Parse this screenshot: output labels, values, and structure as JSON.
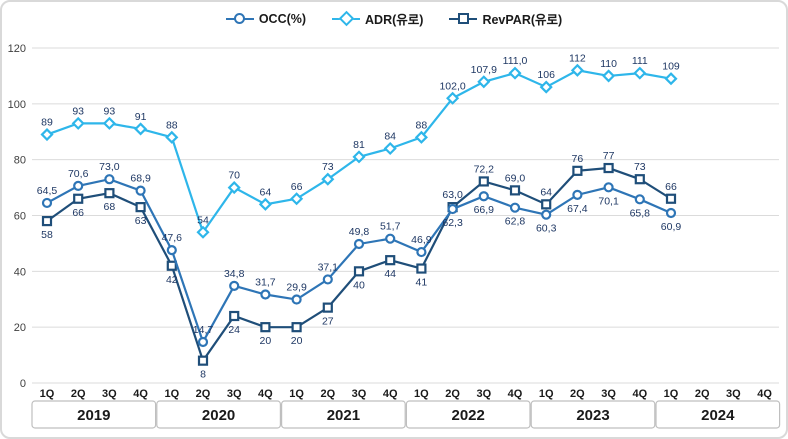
{
  "chart_data": {
    "type": "line",
    "title": "",
    "ylim": [
      0,
      120
    ],
    "ytick_step": 20,
    "grid": true,
    "legend_position": "top",
    "quarters": [
      "1Q",
      "2Q",
      "3Q",
      "4Q",
      "1Q",
      "2Q",
      "3Q",
      "4Q",
      "1Q",
      "2Q",
      "3Q",
      "4Q",
      "1Q",
      "2Q",
      "3Q",
      "4Q",
      "1Q",
      "2Q",
      "3Q",
      "4Q",
      "1Q",
      "2Q",
      "3Q",
      "4Q"
    ],
    "years": [
      "2019",
      "2020",
      "2021",
      "2022",
      "2023",
      "2024"
    ],
    "series": [
      {
        "name": "OCC(%)",
        "marker": "circle",
        "color": "#2E75B6",
        "values": [
          64.5,
          70.6,
          73.0,
          68.9,
          47.6,
          14.7,
          34.8,
          31.7,
          29.9,
          37.1,
          49.8,
          51.7,
          46.9,
          62.3,
          66.9,
          62.8,
          60.3,
          67.4,
          70.1,
          65.8,
          60.9
        ],
        "labels": [
          "64,5",
          "70,6",
          "73,0",
          "68,9",
          "47,6",
          "14,7",
          "34,8",
          "31,7",
          "29,9",
          "37,1",
          "49,8",
          "51,7",
          "46,9",
          "62,3",
          "66,9",
          "62,8",
          "60,3",
          "67,4",
          "70,1",
          "65,8",
          "60,9"
        ],
        "label_side": [
          "above",
          "above",
          "above",
          "above",
          "above",
          "above",
          "above",
          "above",
          "above",
          "above",
          "above",
          "above",
          "above",
          "below",
          "below",
          "below",
          "below",
          "below",
          "below",
          "below",
          "below"
        ]
      },
      {
        "name": "ADR(유로)",
        "marker": "diamond",
        "color": "#2EB6EA",
        "values": [
          89,
          93,
          93,
          91,
          88,
          54,
          70,
          64,
          66,
          73,
          81,
          84,
          88,
          102,
          107.9,
          111,
          106,
          112,
          110,
          111,
          109
        ],
        "labels": [
          "89",
          "93",
          "93",
          "91",
          "88",
          "54",
          "70",
          "64",
          "66",
          "73",
          "81",
          "84",
          "88",
          "102,0",
          "107,9",
          "111,0",
          "106",
          "112",
          "110",
          "111",
          "109"
        ],
        "label_side": [
          "above",
          "above",
          "above",
          "above",
          "above",
          "above",
          "above",
          "above",
          "above",
          "above",
          "above",
          "above",
          "above",
          "above",
          "above",
          "above",
          "above",
          "above",
          "above",
          "above",
          "above"
        ]
      },
      {
        "name": "RevPAR(유로)",
        "marker": "square",
        "color": "#1F4E79",
        "values": [
          58,
          66,
          68,
          63,
          42,
          8,
          24,
          20,
          20,
          27,
          40,
          44,
          41,
          63,
          72.2,
          69,
          64,
          76,
          77,
          73,
          66
        ],
        "labels": [
          "58",
          "66",
          "68",
          "63",
          "42",
          "8",
          "24",
          "20",
          "20",
          "27",
          "40",
          "44",
          "41",
          "63,0",
          "72,2",
          "69,0",
          "64",
          "76",
          "77",
          "73",
          "66"
        ],
        "label_side": [
          "below",
          "below",
          "below",
          "below",
          "below",
          "below",
          "below",
          "below",
          "below",
          "below",
          "below",
          "below",
          "below",
          "above",
          "above",
          "above",
          "above",
          "above",
          "above",
          "above",
          "above"
        ]
      }
    ]
  }
}
